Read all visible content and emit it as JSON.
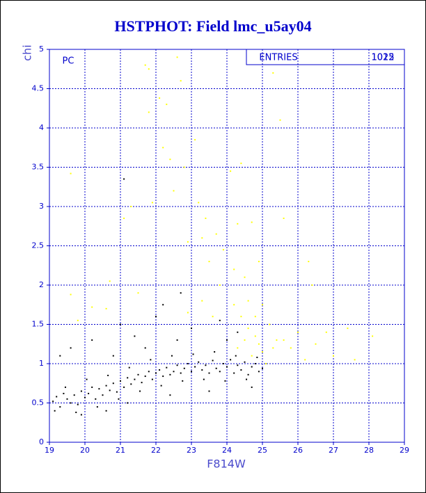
{
  "chart_data": {
    "type": "scatter",
    "title": "HSTPHOT: Field lmc_u5ay04",
    "x_label": "F814W",
    "y_label": "chi",
    "panel_label": "PC",
    "entries_label": "ENTRIES",
    "entries": [
      "1012",
      "1025"
    ],
    "xlim": [
      19,
      29
    ],
    "ylim": [
      0,
      5
    ],
    "xticks": [
      19,
      20,
      21,
      22,
      23,
      24,
      25,
      26,
      27,
      28,
      29
    ],
    "yticks": [
      0,
      0.5,
      1,
      1.5,
      2,
      2.5,
      3,
      3.5,
      4,
      4.5,
      5
    ],
    "grid": true,
    "series": [
      {
        "color": "#000000",
        "x": [
          19.1,
          19.2,
          19.3,
          19.4,
          19.5,
          19.6,
          19.7,
          19.8,
          19.9,
          20.0,
          20.1,
          20.2,
          20.3,
          20.4,
          20.5,
          20.6,
          20.7,
          20.8,
          20.9,
          21.0,
          21.1,
          21.2,
          21.3,
          21.4,
          21.5,
          21.6,
          21.7,
          21.8,
          21.9,
          22.0,
          22.1,
          22.2,
          22.3,
          22.4,
          22.5,
          22.6,
          22.7,
          22.8,
          22.9,
          23.0,
          23.1,
          23.2,
          23.3,
          23.4,
          23.5,
          23.6,
          23.7,
          23.8,
          23.9,
          24.0,
          24.1,
          24.2,
          24.3,
          24.4,
          24.5,
          24.6,
          24.7,
          24.8,
          24.9,
          25.0,
          19.15,
          19.45,
          19.75,
          20.05,
          20.35,
          20.65,
          20.95,
          21.25,
          21.55,
          21.85,
          22.15,
          22.45,
          22.75,
          23.05,
          23.35,
          23.65,
          23.95,
          24.25,
          24.55,
          24.85,
          19.3,
          19.6,
          20.2,
          21.0,
          21.4,
          21.1,
          22.7,
          22.2,
          22.0,
          23.0,
          23.8,
          24.0,
          24.3,
          20.8,
          21.7,
          22.6,
          22.4,
          23.5,
          24.7,
          20.6,
          19.9,
          21.2
        ],
        "values": [
          0.52,
          0.58,
          0.45,
          0.62,
          0.55,
          0.5,
          0.6,
          0.48,
          0.65,
          0.57,
          0.62,
          0.7,
          0.55,
          0.68,
          0.6,
          0.72,
          0.66,
          0.75,
          0.64,
          0.78,
          0.7,
          0.82,
          0.74,
          0.8,
          0.86,
          0.76,
          0.84,
          0.9,
          0.8,
          0.88,
          0.92,
          0.84,
          0.95,
          0.86,
          0.9,
          0.98,
          0.88,
          0.94,
          1.0,
          0.9,
          0.96,
          1.02,
          0.92,
          0.98,
          0.88,
          1.04,
          0.94,
          0.9,
          1.0,
          0.96,
          1.05,
          0.88,
          0.98,
          0.92,
          1.02,
          0.86,
          0.96,
          1.0,
          0.9,
          0.94,
          0.4,
          0.7,
          0.38,
          0.8,
          0.45,
          0.85,
          0.55,
          0.95,
          0.65,
          1.05,
          0.72,
          1.1,
          0.78,
          1.12,
          0.8,
          1.15,
          0.78,
          1.1,
          0.8,
          1.08,
          1.1,
          1.2,
          1.3,
          1.5,
          1.35,
          3.35,
          1.9,
          1.75,
          1.6,
          1.45,
          1.55,
          1.3,
          1.4,
          1.1,
          1.2,
          1.3,
          0.6,
          0.65,
          0.7,
          0.4,
          0.35,
          0.5
        ]
      },
      {
        "color": "#ffff00",
        "x": [
          19.6,
          19.6,
          19.8,
          20.2,
          20.6,
          20.7,
          21.1,
          21.3,
          21.5,
          21.7,
          21.8,
          21.8,
          21.9,
          22.1,
          22.2,
          22.3,
          22.4,
          22.5,
          22.6,
          22.7,
          22.8,
          22.9,
          23.1,
          23.2,
          23.3,
          23.4,
          23.5,
          23.7,
          23.8,
          23.9,
          24.1,
          24.2,
          24.3,
          24.4,
          24.5,
          24.6,
          24.7,
          24.8,
          24.9,
          25.0,
          25.2,
          25.3,
          25.4,
          25.6,
          25.5,
          25.8,
          26.0,
          26.2,
          26.3,
          26.4,
          26.5,
          26.8,
          27.0,
          27.4,
          27.6,
          28.1,
          24.3,
          24.5,
          24.7,
          24.9,
          25.1,
          25.0,
          24.6,
          24.4,
          24.8,
          25.3,
          25.6,
          23.6,
          23.3,
          22.9,
          24.2
        ],
        "values": [
          3.42,
          1.88,
          1.55,
          1.72,
          1.7,
          2.05,
          2.85,
          3.0,
          1.9,
          4.8,
          4.75,
          4.2,
          3.05,
          4.38,
          3.75,
          4.3,
          3.6,
          3.2,
          4.9,
          4.6,
          3.5,
          2.55,
          3.85,
          3.05,
          2.6,
          2.85,
          2.3,
          2.65,
          2.0,
          2.45,
          3.45,
          2.2,
          2.78,
          3.55,
          2.1,
          1.8,
          2.8,
          1.6,
          2.3,
          1.75,
          1.5,
          4.7,
          1.3,
          2.85,
          4.1,
          1.2,
          1.4,
          1.05,
          2.3,
          2.0,
          1.25,
          1.4,
          1.1,
          1.45,
          1.05,
          1.35,
          1.2,
          1.3,
          1.1,
          1.25,
          1.0,
          1.15,
          1.45,
          1.6,
          1.35,
          1.2,
          1.3,
          1.6,
          1.8,
          1.65,
          1.75
        ]
      }
    ]
  }
}
